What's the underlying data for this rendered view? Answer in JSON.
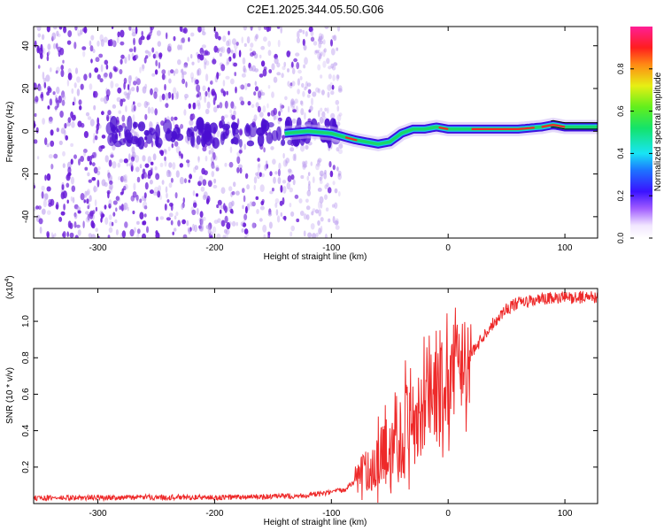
{
  "figure_title": "C2E1.2025.344.05.50.G06",
  "colors": {
    "snr_line": "#ee2a2a",
    "axis": "#000000",
    "background": "#ffffff",
    "scatter_main": "#6a1cd8",
    "scatter_light": "#b999ee",
    "ridge": "#19d76a",
    "ridge_core": "#ee2a2a"
  },
  "chart_data": [
    {
      "type": "heatmap",
      "title": "",
      "xlabel": "Height of straight line (km)",
      "ylabel": "Frequency (Hz)",
      "xlim": [
        -355,
        128
      ],
      "ylim": [
        -50,
        49
      ],
      "xticks": [
        -300,
        -200,
        -100,
        0,
        100
      ],
      "yticks": [
        -40,
        -20,
        0,
        20,
        40
      ],
      "xticklabels": [
        "-300",
        "-200",
        "-100",
        "0",
        "100"
      ],
      "yticklabels": [
        "-40",
        "-20",
        "0",
        "20",
        "40"
      ],
      "ridge": {
        "x": [
          -140,
          -120,
          -100,
          -80,
          -60,
          -50,
          -40,
          -30,
          -20,
          -10,
          0,
          20,
          40,
          60,
          80,
          90,
          100,
          128
        ],
        "y": [
          -1,
          0,
          -1,
          -4,
          -6,
          -5,
          -1,
          1,
          1,
          2,
          1,
          1,
          1,
          1,
          2,
          3,
          2,
          2
        ]
      },
      "colorbar": {
        "label": "Normalized spectral amplitude",
        "range": [
          0,
          1
        ],
        "ticks": [
          0.0,
          0.2,
          0.4,
          0.6,
          0.8
        ],
        "ticklabels": [
          "0.0",
          "0.2",
          "0.4",
          "0.6",
          "0.8"
        ]
      }
    },
    {
      "type": "line",
      "title": "",
      "xlabel": "Height of straight line (km)",
      "ylabel": "SNR (10 * v/v)",
      "scale_label": "(x10",
      "scale_exp": "4",
      "scale_close": ")",
      "xlim": [
        -355,
        128
      ],
      "ylim": [
        0,
        11800
      ],
      "xticks": [
        -300,
        -200,
        -100,
        0,
        100
      ],
      "yticks": [
        2000,
        4000,
        6000,
        8000,
        10000
      ],
      "xticklabels": [
        "-300",
        "-200",
        "-100",
        "0",
        "100"
      ],
      "yticklabels": [
        "0.2",
        "0.4",
        "0.6",
        "0.8",
        "1.0"
      ],
      "series": [
        {
          "name": "SNR",
          "x": [
            -355,
            -300,
            -250,
            -200,
            -150,
            -120,
            -100,
            -90,
            -80,
            -70,
            -60,
            -50,
            -45,
            -40,
            -35,
            -30,
            -25,
            -20,
            -15,
            -10,
            -5,
            0,
            5,
            10,
            15,
            20,
            25,
            30,
            40,
            50,
            60,
            70,
            80,
            90,
            100,
            110,
            120,
            128
          ],
          "y": [
            300,
            320,
            350,
            330,
            380,
            450,
            600,
            750,
            1200,
            1800,
            2300,
            3000,
            3800,
            3600,
            4300,
            5000,
            5200,
            5000,
            5700,
            6000,
            6300,
            6600,
            7000,
            7400,
            7800,
            8200,
            8700,
            9200,
            10000,
            10700,
            11000,
            11100,
            11200,
            11250,
            11300,
            11300,
            11350,
            11350
          ]
        }
      ]
    }
  ]
}
